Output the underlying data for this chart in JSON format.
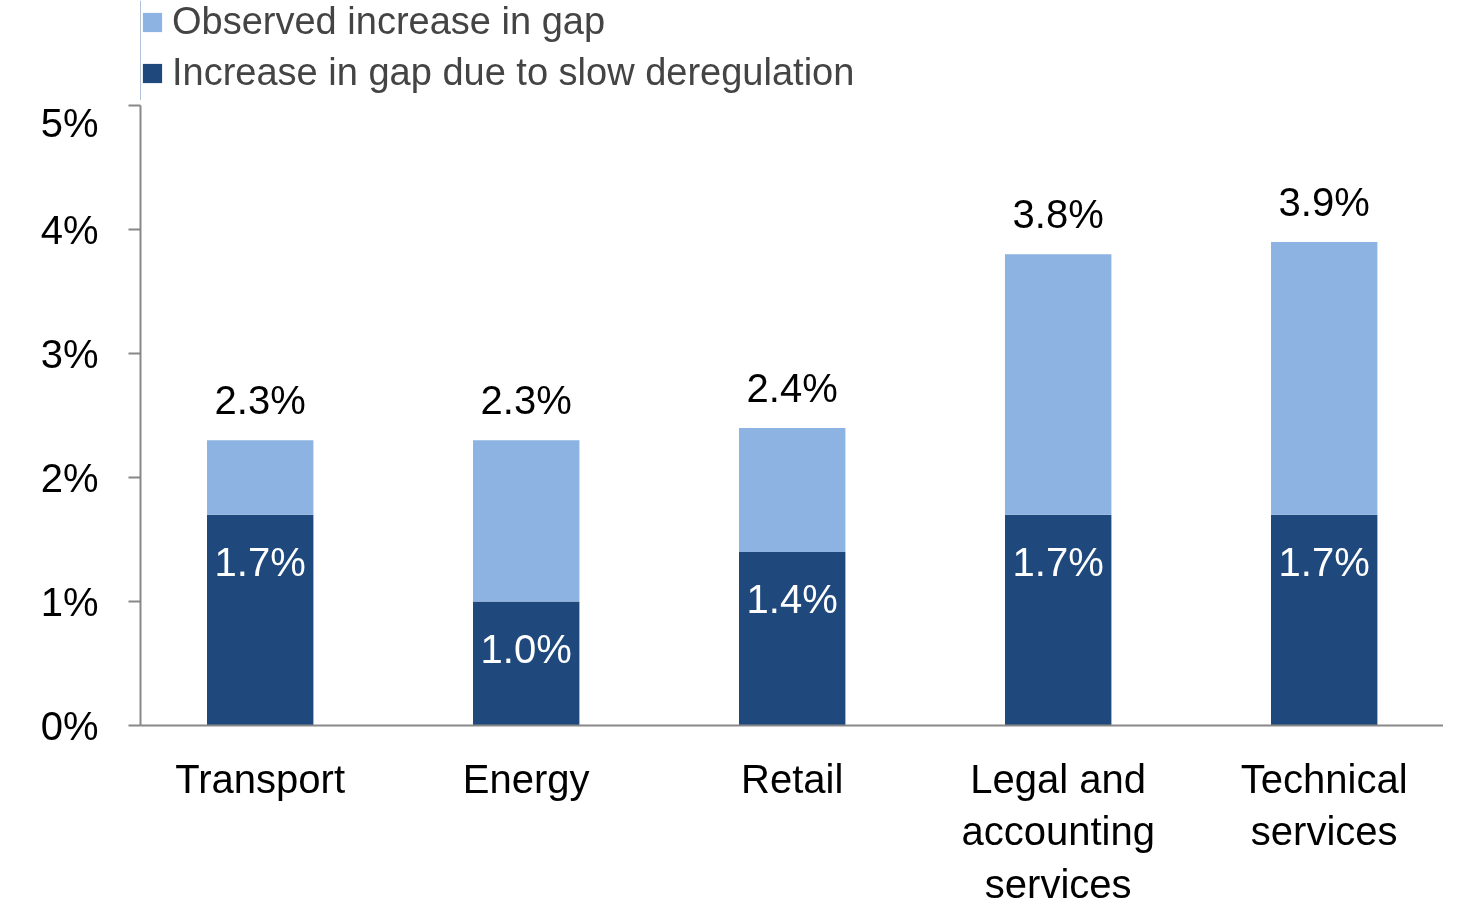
{
  "chart_data": {
    "type": "bar",
    "stacked": true,
    "categories": [
      "Transport",
      "Energy",
      "Retail",
      "Legal and\naccounting\nservices",
      "Technical\nservices"
    ],
    "series": [
      {
        "name": "Increase in gap due to slow deregulation",
        "color": "#1f497d",
        "values": [
          1.7,
          1.0,
          1.4,
          1.7,
          1.7
        ],
        "value_labels": [
          "1.7%",
          "1.0%",
          "1.4%",
          "1.7%",
          "1.7%"
        ]
      },
      {
        "name": "Observed increase in gap",
        "color": "#8db3e2",
        "values": [
          0.6,
          1.3,
          1.0,
          2.1,
          2.2
        ]
      }
    ],
    "totals": [
      "2.3%",
      "2.3%",
      "2.4%",
      "3.8%",
      "3.9%"
    ],
    "ylim": [
      0,
      5
    ],
    "yticks": [
      {
        "value": 0,
        "label": "0%"
      },
      {
        "value": 1,
        "label": "1%"
      },
      {
        "value": 2,
        "label": "2%"
      },
      {
        "value": 3,
        "label": "3%"
      },
      {
        "value": 4,
        "label": "4%"
      },
      {
        "value": 5,
        "label": "5%"
      }
    ],
    "grid": false,
    "legend": "top left"
  }
}
